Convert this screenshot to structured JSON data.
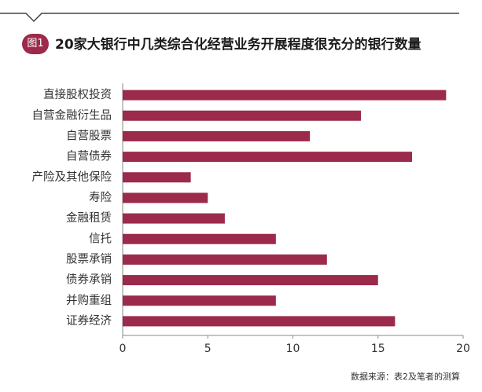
{
  "figure": {
    "badge": "图1",
    "source": "数据来源：表2及笔者的测算"
  },
  "colors": {
    "bar": "#9c2a4b",
    "badge": "#9c2a4b",
    "rule": "#444444",
    "axis": "#8a8a8a"
  },
  "chart_data": {
    "type": "bar",
    "orientation": "horizontal",
    "title": "20家大银行中几类综合化经营业务开展程度很充分的银行数量",
    "xlabel": "",
    "ylabel": "",
    "categories": [
      "直接股权投资",
      "自营金融衍生品",
      "自营股票",
      "自营债券",
      "产险及其他保险",
      "寿险",
      "金融租赁",
      "信托",
      "股票承销",
      "债券承销",
      "并购重组",
      "证券经济"
    ],
    "values": [
      19,
      14,
      11,
      17,
      4,
      5,
      6,
      9,
      12,
      15,
      9,
      16
    ],
    "xlim": [
      0,
      20
    ],
    "xticks": [
      0,
      5,
      10,
      15,
      20
    ],
    "grid": false
  }
}
